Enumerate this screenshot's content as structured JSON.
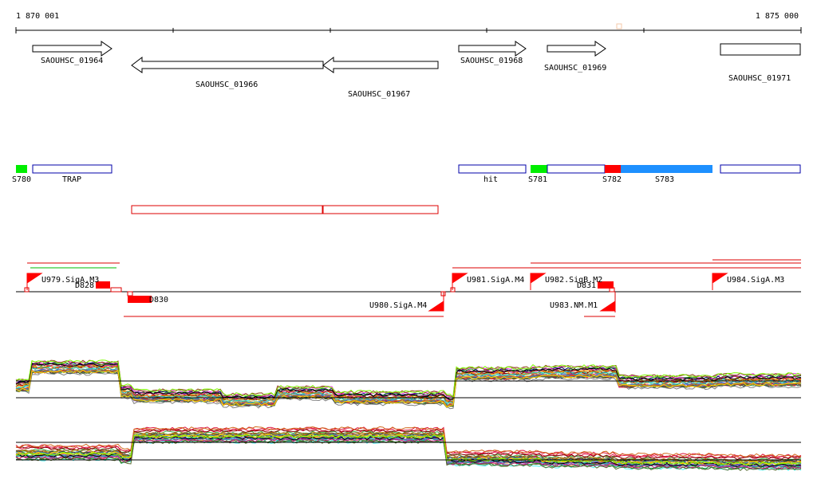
{
  "coordinate_axis": {
    "start_label": "1 870 001",
    "end_label": "1 875 000"
  },
  "genes": [
    {
      "name": "SAOUHSC_01964",
      "strand": "+"
    },
    {
      "name": "SAOUHSC_01966",
      "strand": "-"
    },
    {
      "name": "SAOUHSC_01967",
      "strand": "-"
    },
    {
      "name": "SAOUHSC_01968",
      "strand": "+"
    },
    {
      "name": "SAOUHSC_01969",
      "strand": "+"
    },
    {
      "name": "SAOUHSC_01971",
      "strand": "none"
    }
  ],
  "segments": [
    {
      "label": "S780",
      "color": "#00ee00"
    },
    {
      "label": "TRAP",
      "color": "#ffffff"
    },
    {
      "label": "hit",
      "color": "#ffffff"
    },
    {
      "label": "S781",
      "color": "#00ee00"
    },
    {
      "label": "S782",
      "color": "#ff0000"
    },
    {
      "label": "S783",
      "color": "#1e90ff"
    }
  ],
  "promoters": [
    {
      "label": "U979.SigA.M3",
      "strand": "+"
    },
    {
      "label": "D828",
      "strand": "+"
    },
    {
      "label": "U980.SigA.M4",
      "strand": "-"
    },
    {
      "label": "D830",
      "strand": "-"
    },
    {
      "label": "U981.SigA.M4",
      "strand": "+"
    },
    {
      "label": "U982.SigB.M2",
      "strand": "+"
    },
    {
      "label": "D831",
      "strand": "+"
    },
    {
      "label": "U983.NM.M1",
      "strand": "-"
    },
    {
      "label": "U984.SigA.M3",
      "strand": "+"
    }
  ],
  "colors": {
    "axis": "#000000",
    "gene_outline": "#000000",
    "segment_outline": "#0000aa",
    "antisense_box": "#dd0000",
    "promoter_flag": "#ff0000",
    "threshold_line": "#000000"
  }
}
